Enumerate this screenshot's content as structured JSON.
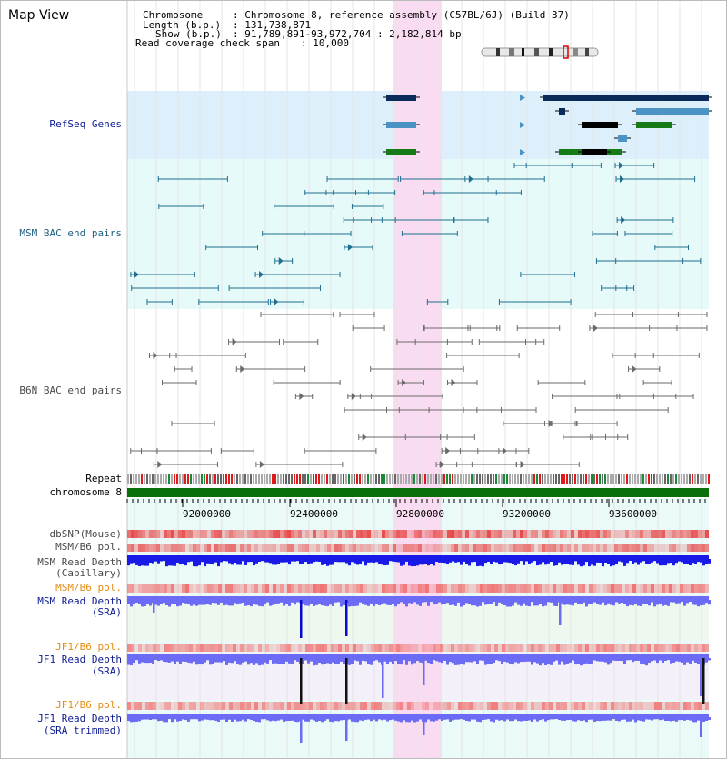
{
  "title": "Map View",
  "header": {
    "chromosome_key": "Chromosome",
    "chromosome_val": ": Chromosome 8, reference assembly (C57BL/6J) (Build 37)",
    "length_key": "Length (b.p.)",
    "length_val": ": 131,738,871",
    "show_key": "Show (b.p.)",
    "show_val": ": 91,789,891-93,972,704 : 2,182,814 bp",
    "read_cov_key": "Read coverage check span",
    "read_cov_val": ": 10,000"
  },
  "tracks": {
    "refseq": "RefSeq Genes",
    "msm_bac": "MSM BAC end pairs",
    "b6n_bac": "B6N BAC end pairs",
    "repeat": "Repeat",
    "chromosome": "chromosome 8",
    "dbsnp": "dbSNP(Mouse)",
    "msm_b6_pol": "MSM/B6 pol.",
    "msm_rd_cap_1": "MSM Read Depth",
    "msm_rd_cap_2": "(Capillary)",
    "msm_b6_pol2": "MSM/B6 pol.",
    "msm_rd_sra_1": "MSM Read Depth",
    "msm_rd_sra_2": "(SRA)",
    "jf1_b6_pol": "JF1/B6 pol.",
    "jf1_rd_sra_1": "JF1 Read Depth",
    "jf1_rd_sra_2": "(SRA)",
    "jf1_b6_pol2": "JF1/B6 pol.",
    "jf1_rd_trim_1": "JF1 Read Depth",
    "jf1_rd_trim_2": "(SRA trimmed)"
  },
  "axis": {
    "ticks": [
      "92000000",
      "92400000",
      "92800000",
      "93200000",
      "93600000"
    ]
  },
  "colors": {
    "refseq_bg": "#dceffa",
    "bac_bg": "#e6fafa",
    "highlight": "#fadcf2",
    "gene_dark": "#0a2a5a",
    "gene_mid": "#4a93c4",
    "gene_green": "#167a16",
    "msm_bac": "#1f6f8f",
    "b6n_bac": "#6a6a6a",
    "chrom": "#0a6e0a",
    "depth_blue": "#3a3af0",
    "depth_violet": "#6b6bf5",
    "label_navy": "#0c1a90",
    "label_teal": "#1f5f7f",
    "label_gray": "#4a4a4a",
    "label_orange": "#e38c12"
  }
}
